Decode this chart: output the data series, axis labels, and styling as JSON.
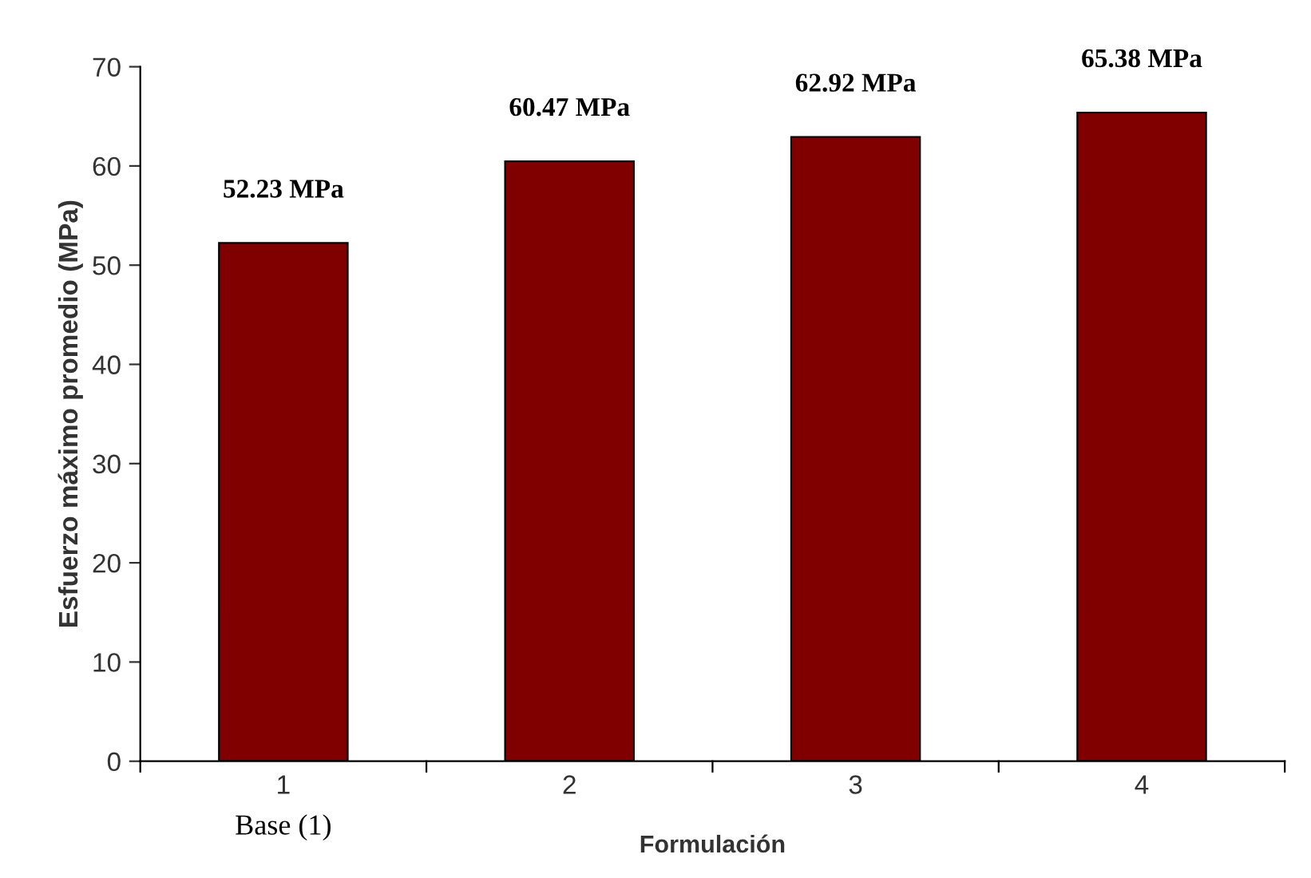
{
  "chart_data": {
    "type": "bar",
    "xlabel": "Formulación",
    "ylabel": "Esfuerzo máximo promedio (MPa)",
    "categories": [
      "1",
      "2",
      "3",
      "4"
    ],
    "values": [
      52.23,
      60.47,
      62.92,
      65.38
    ],
    "value_labels": [
      "52.23 MPa",
      "60.47 MPa",
      "62.92 MPa",
      "65.38 MPa"
    ],
    "color": "#800000",
    "ylim": [
      0,
      70
    ],
    "yticks": [
      0,
      10,
      20,
      30,
      40,
      50,
      60,
      70
    ],
    "grid": false,
    "legend": false,
    "annotations": [
      "Base (1)"
    ]
  }
}
